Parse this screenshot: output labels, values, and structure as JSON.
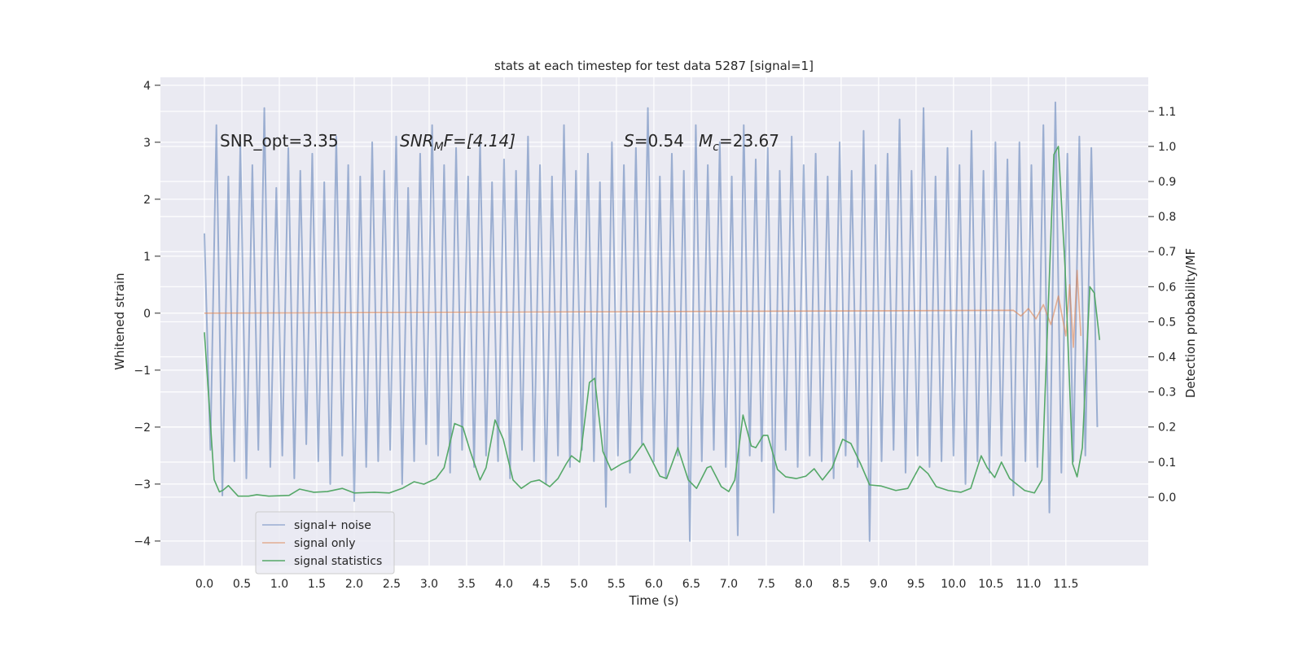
{
  "chart_data": {
    "type": "line",
    "title": "stats at each timestep for test data 5287 [signal=1]",
    "xlabel": "Time (s)",
    "ylabel": "Whitened strain",
    "y2label": "Detection probability/MF",
    "annotations": [
      [
        "SNR_opt=3.35"
      ],
      [
        "SNR",
        "M",
        "F=[4.14]"
      ],
      [
        "S",
        "=0.54",
        "M",
        "c",
        "=23.67"
      ]
    ],
    "xlim": [
      -0.587,
      12.6
    ],
    "ylim": [
      -4.43,
      4.14
    ],
    "y2lim": [
      -0.195,
      1.197
    ],
    "xticks": [
      {
        "value": 0,
        "label": "0.0"
      },
      0.5,
      {
        "value": 1,
        "label": "1.0"
      },
      1.5,
      {
        "value": 2,
        "label": "2.0"
      },
      2.5,
      {
        "value": 3,
        "label": "3.0"
      },
      3.5,
      {
        "value": 4,
        "label": "4.0"
      },
      4.5,
      {
        "value": 5,
        "label": "5.0"
      },
      5.5,
      {
        "value": 6,
        "label": "6.0"
      },
      6.5,
      {
        "value": 7,
        "label": "7.0"
      },
      7.5,
      {
        "value": 8,
        "label": "8.0"
      },
      8.5,
      {
        "value": 9,
        "label": "9.0"
      },
      9.5,
      {
        "value": 10,
        "label": "10.0"
      },
      10.5,
      {
        "value": 11,
        "label": "11.0"
      },
      11.5
    ],
    "yticks": [
      {
        "value": -4,
        "label": "−4"
      },
      {
        "value": -3,
        "label": "−3"
      },
      {
        "value": -2,
        "label": "−2"
      },
      {
        "value": -1,
        "label": "−1"
      },
      0,
      1,
      2,
      3,
      4
    ],
    "y2ticks": [
      {
        "value": 0,
        "label": "0.0"
      },
      0.1,
      0.2,
      0.3,
      0.4,
      0.5,
      0.6,
      0.7,
      0.8,
      0.9,
      {
        "value": 1,
        "label": "1.0"
      },
      1.1
    ],
    "grid": true,
    "legend": "lower left",
    "series": [
      {
        "name": "signal+ noise",
        "color": "#4c72b0",
        "opacity": 0.5,
        "x": [
          0,
          0.08,
          0.16,
          0.24,
          0.32,
          0.4,
          0.48,
          0.56,
          0.64,
          0.72,
          0.8,
          0.88,
          0.96,
          1.04,
          1.12,
          1.2,
          1.28,
          1.36,
          1.44,
          1.52,
          1.6,
          1.68,
          1.76,
          1.84,
          1.92,
          2,
          2.08,
          2.16,
          2.24,
          2.32,
          2.4,
          2.48,
          2.56,
          2.64,
          2.72,
          2.8,
          2.88,
          2.96,
          3.04,
          3.12,
          3.2,
          3.28,
          3.36,
          3.44,
          3.52,
          3.6,
          3.68,
          3.76,
          3.84,
          3.92,
          4,
          4.08,
          4.16,
          4.24,
          4.32,
          4.4,
          4.48,
          4.56,
          4.64,
          4.72,
          4.8,
          4.88,
          4.96,
          5.04,
          5.12,
          5.2,
          5.28,
          5.36,
          5.44,
          5.52,
          5.6,
          5.68,
          5.76,
          5.84,
          5.92,
          6,
          6.08,
          6.16,
          6.24,
          6.32,
          6.4,
          6.48,
          6.56,
          6.64,
          6.72,
          6.8,
          6.88,
          6.96,
          7.04,
          7.12,
          7.2,
          7.28,
          7.36,
          7.44,
          7.52,
          7.6,
          7.68,
          7.76,
          7.84,
          7.92,
          8,
          8.08,
          8.16,
          8.24,
          8.32,
          8.4,
          8.48,
          8.56,
          8.64,
          8.72,
          8.8,
          8.88,
          8.96,
          9.04,
          9.12,
          9.2,
          9.28,
          9.36,
          9.44,
          9.52,
          9.6,
          9.68,
          9.76,
          9.84,
          9.92,
          10,
          10.08,
          10.16,
          10.24,
          10.32,
          10.4,
          10.48,
          10.56,
          10.64,
          10.72,
          10.8,
          10.88,
          10.96,
          11.04,
          11.12,
          11.2,
          11.28,
          11.36,
          11.44,
          11.52,
          11.6,
          11.68,
          11.76,
          11.84,
          11.92
        ],
        "values": [
          1.4,
          -2.4,
          3.3,
          -3.2,
          2.4,
          -2.6,
          3.0,
          -2.9,
          2.6,
          -2.4,
          3.6,
          -2.7,
          2.2,
          -2.5,
          2.9,
          -2.9,
          2.5,
          -2.3,
          2.8,
          -2.6,
          2.3,
          -3.0,
          3.1,
          -2.5,
          2.6,
          -3.3,
          2.4,
          -2.7,
          3.0,
          -2.6,
          2.5,
          -2.4,
          3.1,
          -3.0,
          2.2,
          -2.6,
          2.8,
          -2.3,
          3.3,
          -2.5,
          2.6,
          -2.8,
          2.9,
          -2.4,
          2.4,
          -2.7,
          3.0,
          -2.5,
          2.3,
          -2.6,
          2.7,
          -2.9,
          2.5,
          -2.4,
          3.1,
          -2.6,
          2.6,
          -3.0,
          2.4,
          -2.5,
          3.3,
          -2.7,
          2.5,
          -2.4,
          2.8,
          -2.6,
          2.3,
          -3.4,
          3.0,
          -2.5,
          2.6,
          -2.8,
          2.9,
          -2.3,
          3.6,
          -2.6,
          2.4,
          -2.9,
          2.8,
          -2.5,
          2.5,
          -4.0,
          3.3,
          -2.6,
          2.6,
          -2.4,
          3.0,
          -2.7,
          2.4,
          -3.9,
          3.3,
          -2.5,
          2.7,
          -2.6,
          2.9,
          -3.5,
          2.5,
          -2.4,
          3.1,
          -2.7,
          2.6,
          -2.5,
          2.8,
          -2.6,
          2.4,
          -2.9,
          3.0,
          -2.5,
          2.5,
          -2.7,
          3.2,
          -4.0,
          2.6,
          -2.6,
          2.8,
          -2.4,
          3.4,
          -2.8,
          2.5,
          -2.5,
          3.6,
          -2.7,
          2.4,
          -2.6,
          2.9,
          -2.5,
          2.6,
          -3.0,
          3.2,
          -2.6,
          2.5,
          -2.8,
          3.0,
          -2.5,
          2.7,
          -3.2,
          3.0,
          -2.6,
          2.6,
          -2.7,
          3.3,
          -3.5,
          3.7,
          -2.8,
          2.8,
          -2.6,
          3.1,
          -2.5,
          2.9,
          -2.0
        ]
      },
      {
        "name": "signal only",
        "color": "#dd8452",
        "opacity": 0.6,
        "x": [
          0,
          10.8,
          10.9,
          11.0,
          11.1,
          11.2,
          11.3,
          11.4,
          11.5,
          11.55,
          11.6,
          11.65,
          11.7
        ],
        "values": [
          0,
          0.05,
          -0.05,
          0.08,
          -0.1,
          0.15,
          -0.2,
          0.3,
          -0.4,
          0.5,
          -0.6,
          0.75,
          -0.4
        ]
      },
      {
        "name": "signal statistics",
        "color": "#55a868",
        "opacity": 1,
        "axis": "y2",
        "x": [
          0,
          0.13,
          0.2,
          0.25,
          0.32,
          0.45,
          0.59,
          0.7,
          0.86,
          1.13,
          1.27,
          1.46,
          1.64,
          1.84,
          2.0,
          2.27,
          2.47,
          2.64,
          2.8,
          2.93,
          3.09,
          3.2,
          3.34,
          3.45,
          3.55,
          3.68,
          3.76,
          3.88,
          3.99,
          4.12,
          4.23,
          4.36,
          4.47,
          4.61,
          4.72,
          4.83,
          4.9,
          5.01,
          5.14,
          5.21,
          5.32,
          5.43,
          5.57,
          5.7,
          5.86,
          5.97,
          6.08,
          6.17,
          6.32,
          6.46,
          6.57,
          6.71,
          6.76,
          6.9,
          7.0,
          7.08,
          7.19,
          7.3,
          7.36,
          7.46,
          7.52,
          7.65,
          7.76,
          7.9,
          8.03,
          8.14,
          8.25,
          8.38,
          8.52,
          8.63,
          8.76,
          8.88,
          9.03,
          9.23,
          9.39,
          9.55,
          9.66,
          9.77,
          9.93,
          10.1,
          10.23,
          10.37,
          10.45,
          10.55,
          10.64,
          10.75,
          10.95,
          11.08,
          11.18,
          11.34,
          11.4,
          11.49,
          11.59,
          11.65,
          11.72,
          11.82,
          11.88,
          11.95
        ],
        "values": [
          0.47,
          0.05,
          0.015,
          0.02,
          0.033,
          0.003,
          0.003,
          0.007,
          0.003,
          0.005,
          0.023,
          0.014,
          0.016,
          0.025,
          0.012,
          0.014,
          0.012,
          0.025,
          0.044,
          0.037,
          0.053,
          0.084,
          0.21,
          0.2,
          0.13,
          0.049,
          0.084,
          0.22,
          0.165,
          0.049,
          0.025,
          0.044,
          0.049,
          0.03,
          0.053,
          0.095,
          0.118,
          0.1,
          0.327,
          0.339,
          0.13,
          0.077,
          0.095,
          0.107,
          0.153,
          0.107,
          0.06,
          0.053,
          0.141,
          0.049,
          0.025,
          0.084,
          0.088,
          0.03,
          0.016,
          0.049,
          0.234,
          0.146,
          0.141,
          0.176,
          0.176,
          0.079,
          0.058,
          0.053,
          0.06,
          0.081,
          0.049,
          0.084,
          0.165,
          0.153,
          0.095,
          0.035,
          0.032,
          0.019,
          0.025,
          0.088,
          0.067,
          0.03,
          0.019,
          0.014,
          0.025,
          0.118,
          0.084,
          0.056,
          0.1,
          0.053,
          0.019,
          0.012,
          0.049,
          0.977,
          1.0,
          0.652,
          0.095,
          0.058,
          0.141,
          0.6,
          0.582,
          0.448
        ]
      }
    ]
  }
}
